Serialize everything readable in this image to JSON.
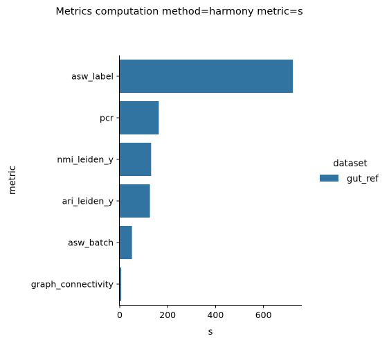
{
  "chart_data": {
    "type": "bar",
    "orientation": "horizontal",
    "title": "Metrics computation method=harmony metric=s",
    "xlabel": "s",
    "ylabel": "metric",
    "categories": [
      "asw_label",
      "pcr",
      "nmi_leiden_y",
      "ari_leiden_y",
      "asw_batch",
      "graph_connectivity"
    ],
    "series": [
      {
        "name": "gut_ref",
        "values": [
          723,
          163,
          131,
          126,
          51,
          6
        ],
        "color": "#3274a1"
      }
    ],
    "xlim": [
      0,
      760
    ],
    "xticks": [
      0,
      200,
      400,
      600
    ],
    "xtick_labels": [
      "0",
      "200",
      "400",
      "600"
    ],
    "grid": false,
    "legend": {
      "title": "dataset",
      "placement": "center-right, outside plot"
    }
  }
}
